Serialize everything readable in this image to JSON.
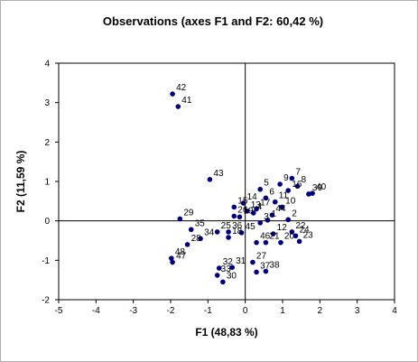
{
  "chart_data": {
    "type": "scatter",
    "title": "Observations (axes F1 and F2: 60,42 %)",
    "xlabel": "F1 (48,83 %)",
    "ylabel": "F2 (11,59 %)",
    "xlim": [
      -5,
      4
    ],
    "ylim": [
      -2,
      4
    ],
    "xticks": [
      "-5",
      "-4",
      "-3",
      "-2",
      "-1",
      "0",
      "1",
      "2",
      "3",
      "4"
    ],
    "yticks": [
      "-2",
      "-1",
      "0",
      "1",
      "2",
      "3",
      "4"
    ],
    "grid": false,
    "legend": "none",
    "marker_color": "#000080",
    "points": [
      {
        "label": "1",
        "x": 0.6,
        "y": 0.02
      },
      {
        "label": "2",
        "x": 1.15,
        "y": 0.03
      },
      {
        "label": "3",
        "x": 0.4,
        "y": -0.05
      },
      {
        "label": "4",
        "x": 0.22,
        "y": 0.2
      },
      {
        "label": "5",
        "x": 0.4,
        "y": 0.8
      },
      {
        "label": "6",
        "x": 0.55,
        "y": 0.58
      },
      {
        "label": "7",
        "x": 1.25,
        "y": 1.08
      },
      {
        "label": "8",
        "x": 1.4,
        "y": 0.88
      },
      {
        "label": "9",
        "x": 0.93,
        "y": 0.93
      },
      {
        "label": "10",
        "x": 0.98,
        "y": 0.35
      },
      {
        "label": "11",
        "x": 0.8,
        "y": 0.48
      },
      {
        "label": "12",
        "x": 0.75,
        "y": -0.33
      },
      {
        "label": "13",
        "x": 0.05,
        "y": 0.25
      },
      {
        "label": "14",
        "x": -0.05,
        "y": 0.45
      },
      {
        "label": "15",
        "x": -0.3,
        "y": 0.35
      },
      {
        "label": "16",
        "x": 1.15,
        "y": 0.77
      },
      {
        "label": "17",
        "x": 0.3,
        "y": 0.3
      },
      {
        "label": "18",
        "x": -0.45,
        "y": -0.42
      },
      {
        "label": "19",
        "x": -0.15,
        "y": 0.1
      },
      {
        "label": "20",
        "x": 0.95,
        "y": -0.55
      },
      {
        "label": "21",
        "x": 0.55,
        "y": -0.55
      },
      {
        "label": "22",
        "x": 1.25,
        "y": -0.28
      },
      {
        "label": "23",
        "x": 1.45,
        "y": -0.52
      },
      {
        "label": "24",
        "x": 1.35,
        "y": -0.38
      },
      {
        "label": "25",
        "x": -0.75,
        "y": -0.28
      },
      {
        "label": "26",
        "x": -0.3,
        "y": 0.12
      },
      {
        "label": "27",
        "x": 0.2,
        "y": -1.05
      },
      {
        "label": "28",
        "x": -1.55,
        "y": -0.6
      },
      {
        "label": "29",
        "x": -1.75,
        "y": 0.05
      },
      {
        "label": "30",
        "x": -0.6,
        "y": -1.55
      },
      {
        "label": "31",
        "x": -0.35,
        "y": -1.18
      },
      {
        "label": "32",
        "x": -0.7,
        "y": -1.2
      },
      {
        "label": "33",
        "x": -0.75,
        "y": -1.38
      },
      {
        "label": "34",
        "x": -1.2,
        "y": -0.45
      },
      {
        "label": "35",
        "x": -1.45,
        "y": -0.22
      },
      {
        "label": "36",
        "x": -0.45,
        "y": -0.28
      },
      {
        "label": "37",
        "x": 0.3,
        "y": -1.3
      },
      {
        "label": "38",
        "x": 0.55,
        "y": -1.28
      },
      {
        "label": "39",
        "x": 1.7,
        "y": 0.68
      },
      {
        "label": "40",
        "x": 1.8,
        "y": 0.7
      },
      {
        "label": "41",
        "x": -1.8,
        "y": 2.9
      },
      {
        "label": "42",
        "x": -1.95,
        "y": 3.22
      },
      {
        "label": "43",
        "x": -0.95,
        "y": 1.05
      },
      {
        "label": "44",
        "x": 0.72,
        "y": 0.15
      },
      {
        "label": "45",
        "x": -0.1,
        "y": -0.3
      },
      {
        "label": "46",
        "x": 0.3,
        "y": -0.55
      },
      {
        "label": "47",
        "x": -1.95,
        "y": -1.05
      },
      {
        "label": "48",
        "x": -1.98,
        "y": -0.95
      }
    ]
  }
}
